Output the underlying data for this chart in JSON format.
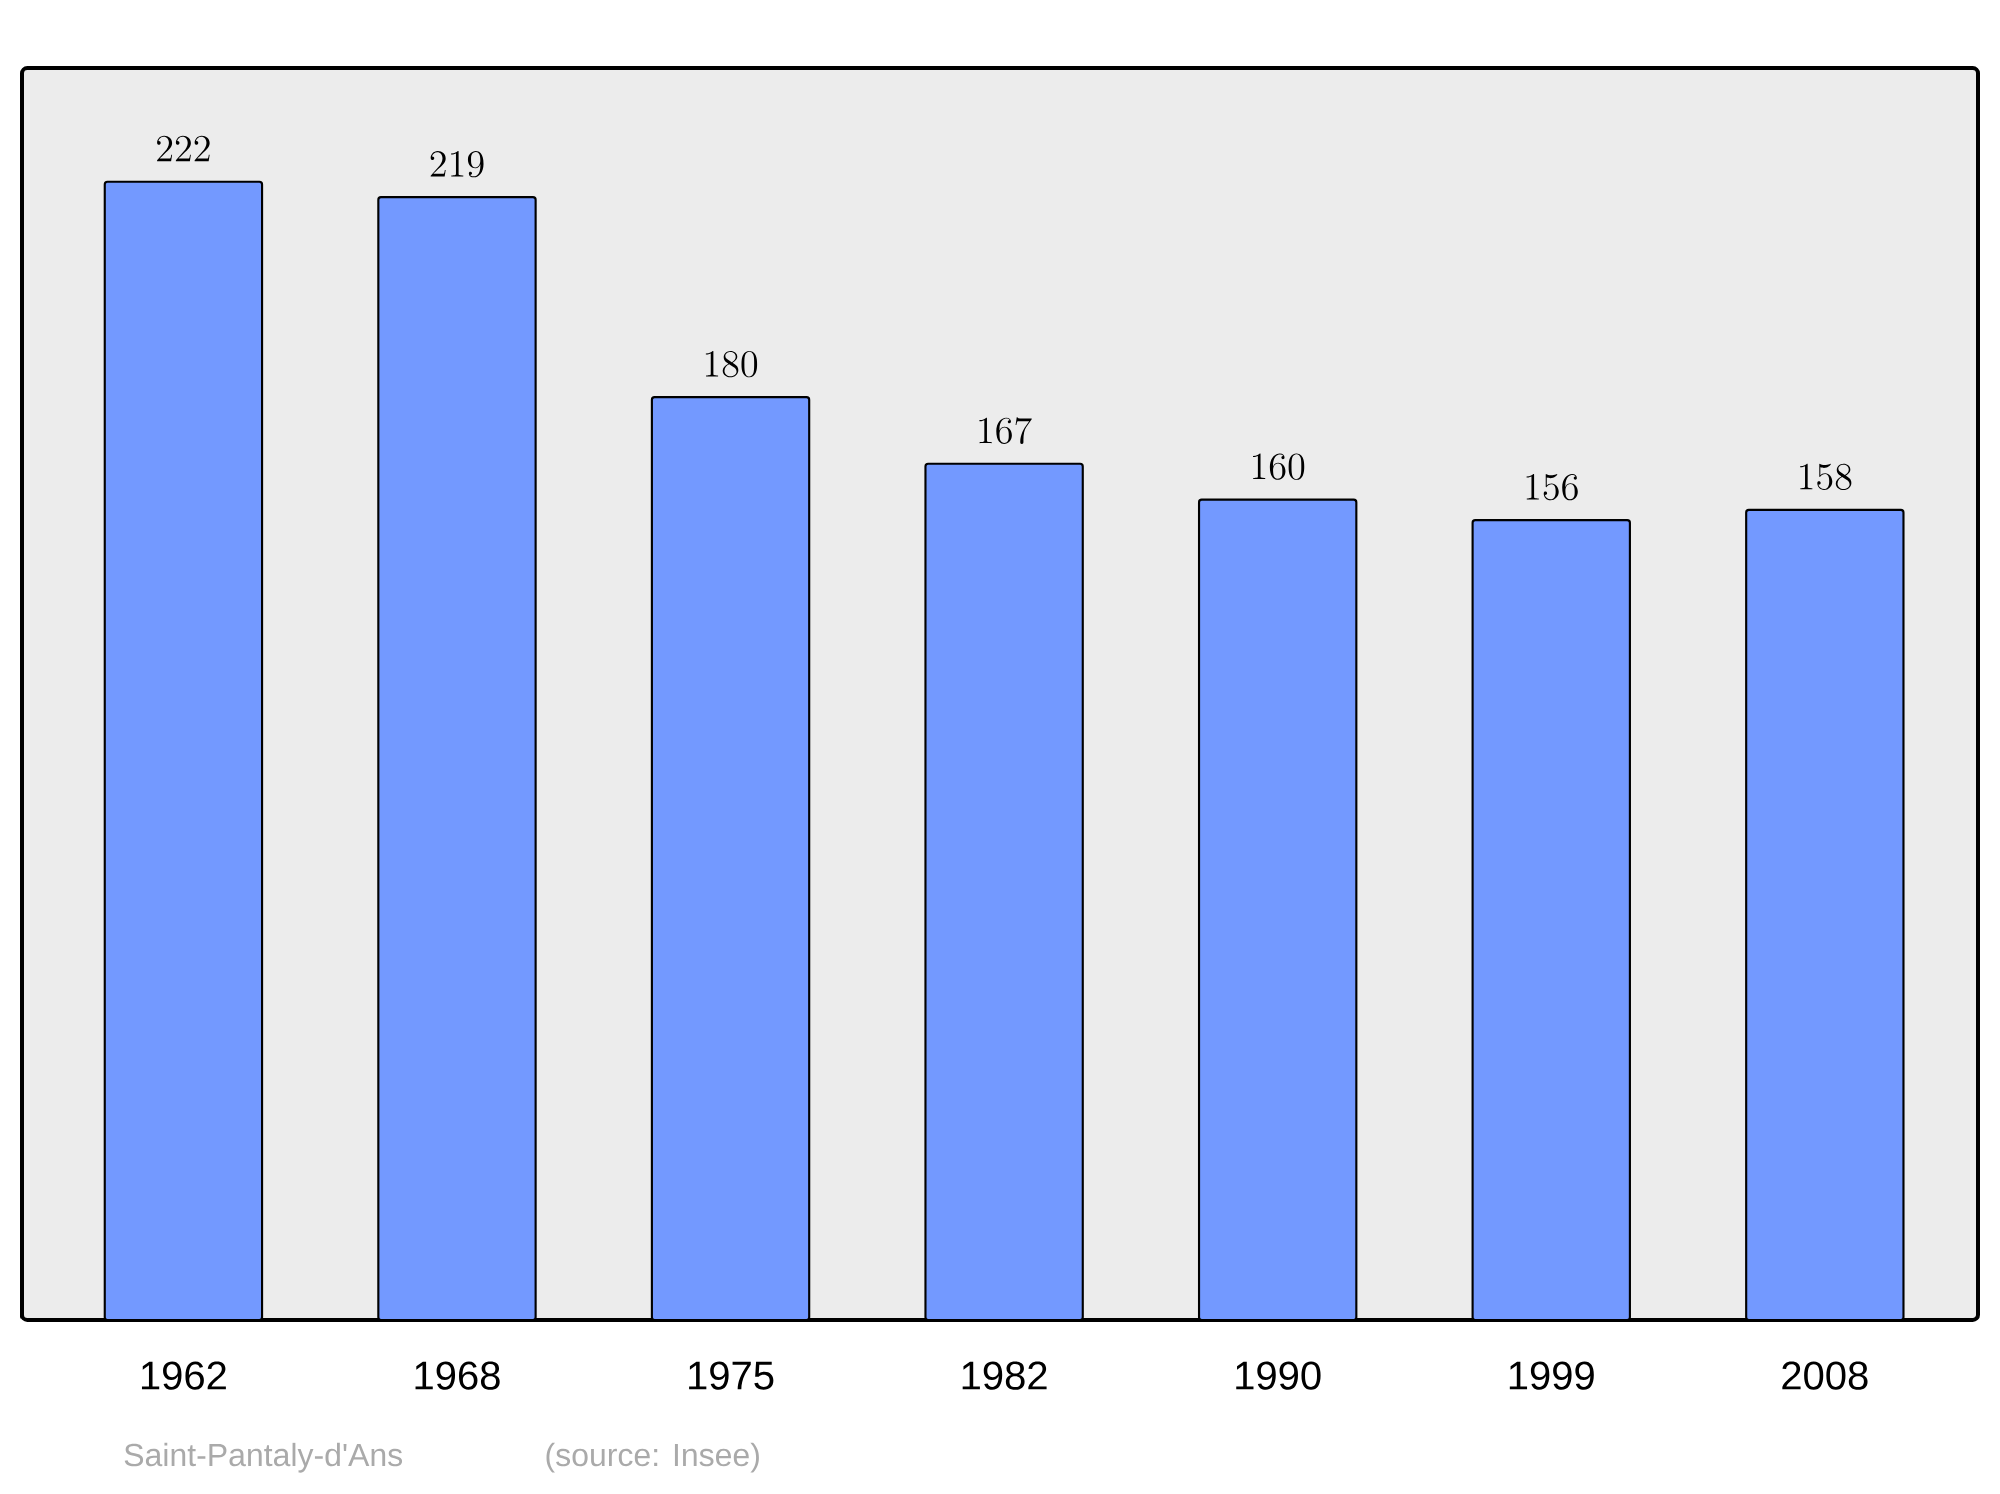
{
  "chart_data": {
    "type": "bar",
    "categories": [
      "1962",
      "1968",
      "1975",
      "1982",
      "1990",
      "1999",
      "2008"
    ],
    "values": [
      222,
      219,
      180,
      167,
      160,
      156,
      158
    ],
    "color": "#7399ff",
    "data_labels": true,
    "annotations": [
      "Saint-Pantaly-d'Ans",
      "(source: Insee)"
    ]
  }
}
